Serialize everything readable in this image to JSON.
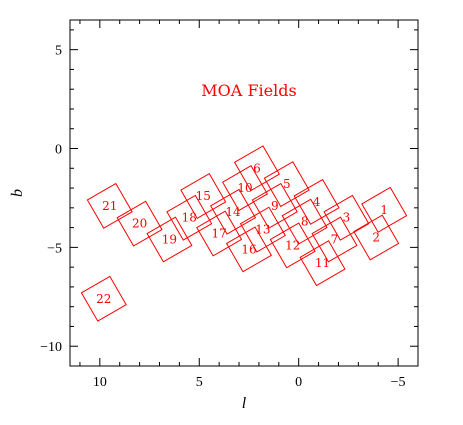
{
  "chart_data": {
    "type": "scatter",
    "title": "MOA Fields",
    "xlabel": "l",
    "ylabel": "b",
    "xlim": [
      11.5,
      -6
    ],
    "ylim": [
      -11,
      6.5
    ],
    "x_inverted": true,
    "xticks": [
      10,
      5,
      0,
      -5
    ],
    "xtick_labels": [
      "10",
      "5",
      "0",
      "−5"
    ],
    "yticks": [
      5,
      0,
      -5,
      -10
    ],
    "ytick_labels": [
      "5",
      "0",
      "−5",
      "−10"
    ],
    "minor_ticks": true,
    "grid": false,
    "field_color": "#ff0000",
    "field_size_deg": [
      1.65,
      1.65
    ],
    "field_rotation_deg": 30,
    "fields": [
      {
        "id": "1",
        "l": -4.3,
        "b": -3.1
      },
      {
        "id": "2",
        "l": -3.9,
        "b": -4.5
      },
      {
        "id": "3",
        "l": -2.4,
        "b": -3.5
      },
      {
        "id": "4",
        "l": -0.9,
        "b": -2.7
      },
      {
        "id": "5",
        "l": 0.6,
        "b": -1.8
      },
      {
        "id": "6",
        "l": 2.1,
        "b": -1.0
      },
      {
        "id": "7",
        "l": -1.8,
        "b": -4.6
      },
      {
        "id": "8",
        "l": -0.3,
        "b": -3.7
      },
      {
        "id": "9",
        "l": 1.2,
        "b": -2.9
      },
      {
        "id": "10",
        "l": 2.7,
        "b": -2.0
      },
      {
        "id": "11",
        "l": -1.2,
        "b": -5.8
      },
      {
        "id": "12",
        "l": 0.3,
        "b": -4.9
      },
      {
        "id": "13",
        "l": 1.8,
        "b": -4.1
      },
      {
        "id": "14",
        "l": 3.3,
        "b": -3.2
      },
      {
        "id": "15",
        "l": 4.8,
        "b": -2.4
      },
      {
        "id": "16",
        "l": 2.5,
        "b": -5.1
      },
      {
        "id": "17",
        "l": 4.0,
        "b": -4.3
      },
      {
        "id": "18",
        "l": 5.5,
        "b": -3.5
      },
      {
        "id": "19",
        "l": 6.5,
        "b": -4.6
      },
      {
        "id": "20",
        "l": 8.0,
        "b": -3.8
      },
      {
        "id": "21",
        "l": 9.5,
        "b": -2.9
      },
      {
        "id": "22",
        "l": 9.8,
        "b": -7.6
      }
    ]
  }
}
